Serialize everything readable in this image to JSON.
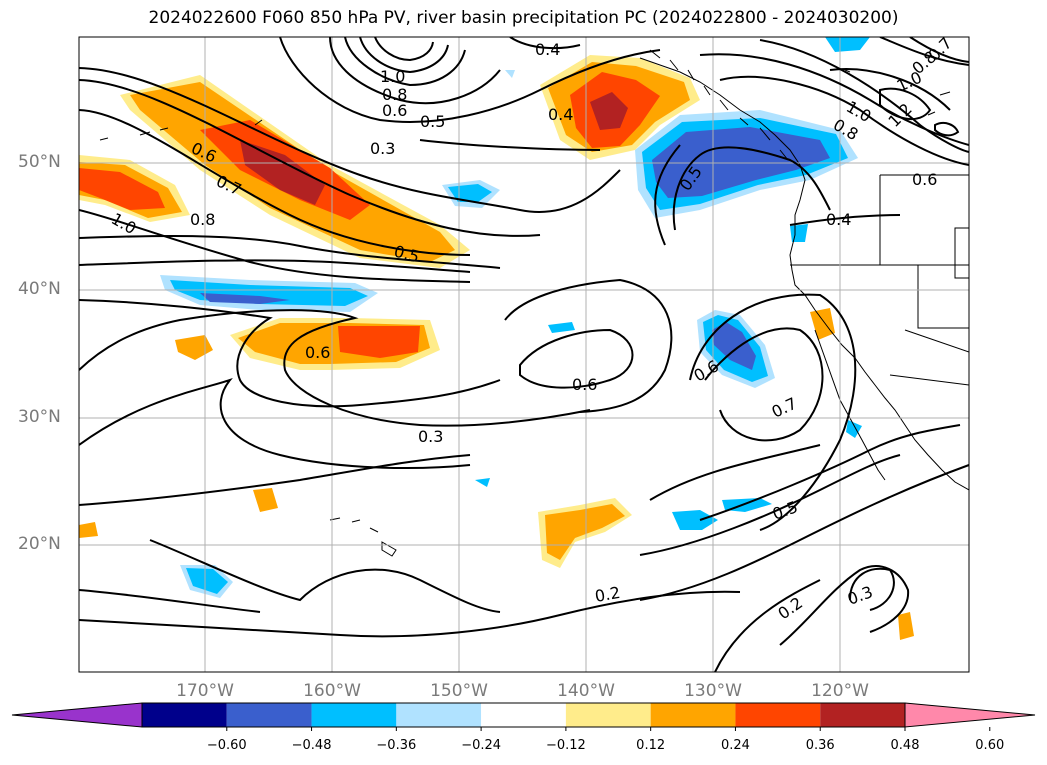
{
  "title": "2024022600 F060 850 hPa PV, river basin precipitation PC (2024022800 - 2024030200)",
  "axes": {
    "lat_labels": [
      "50°N",
      "40°N",
      "30°N",
      "20°N"
    ],
    "lon_labels": [
      "170°W",
      "160°W",
      "150°W",
      "140°W",
      "130°W",
      "120°W"
    ]
  },
  "colorbar": {
    "colors": [
      "#9933cc",
      "#00008b",
      "#3a5fcd",
      "#00bfff",
      "#b0e2ff",
      "#ffffff",
      "#ffec8b",
      "#ffa500",
      "#ff4500",
      "#b22222",
      "#ff88aa"
    ],
    "ticks": [
      "−0.60",
      "−0.48",
      "−0.36",
      "−0.24",
      "−0.12",
      "0.12",
      "0.24",
      "0.36",
      "0.48",
      "0.60"
    ],
    "extend": "both"
  },
  "contour_labels": [
    "0.4",
    "1.0",
    "0.8",
    "0.6",
    "0.5",
    "0.3",
    "0.4",
    "1.0",
    "0.8",
    "0.7",
    "1.2",
    "0.6",
    "0.8",
    "1.0",
    "0.6",
    "0.7",
    "0.8",
    "1.0",
    "0.5",
    "0.4",
    "0.5",
    "0.6",
    "0.6",
    "0.6",
    "0.7",
    "0.3",
    "0.5",
    "0.2",
    "0.2",
    "0.3"
  ]
}
